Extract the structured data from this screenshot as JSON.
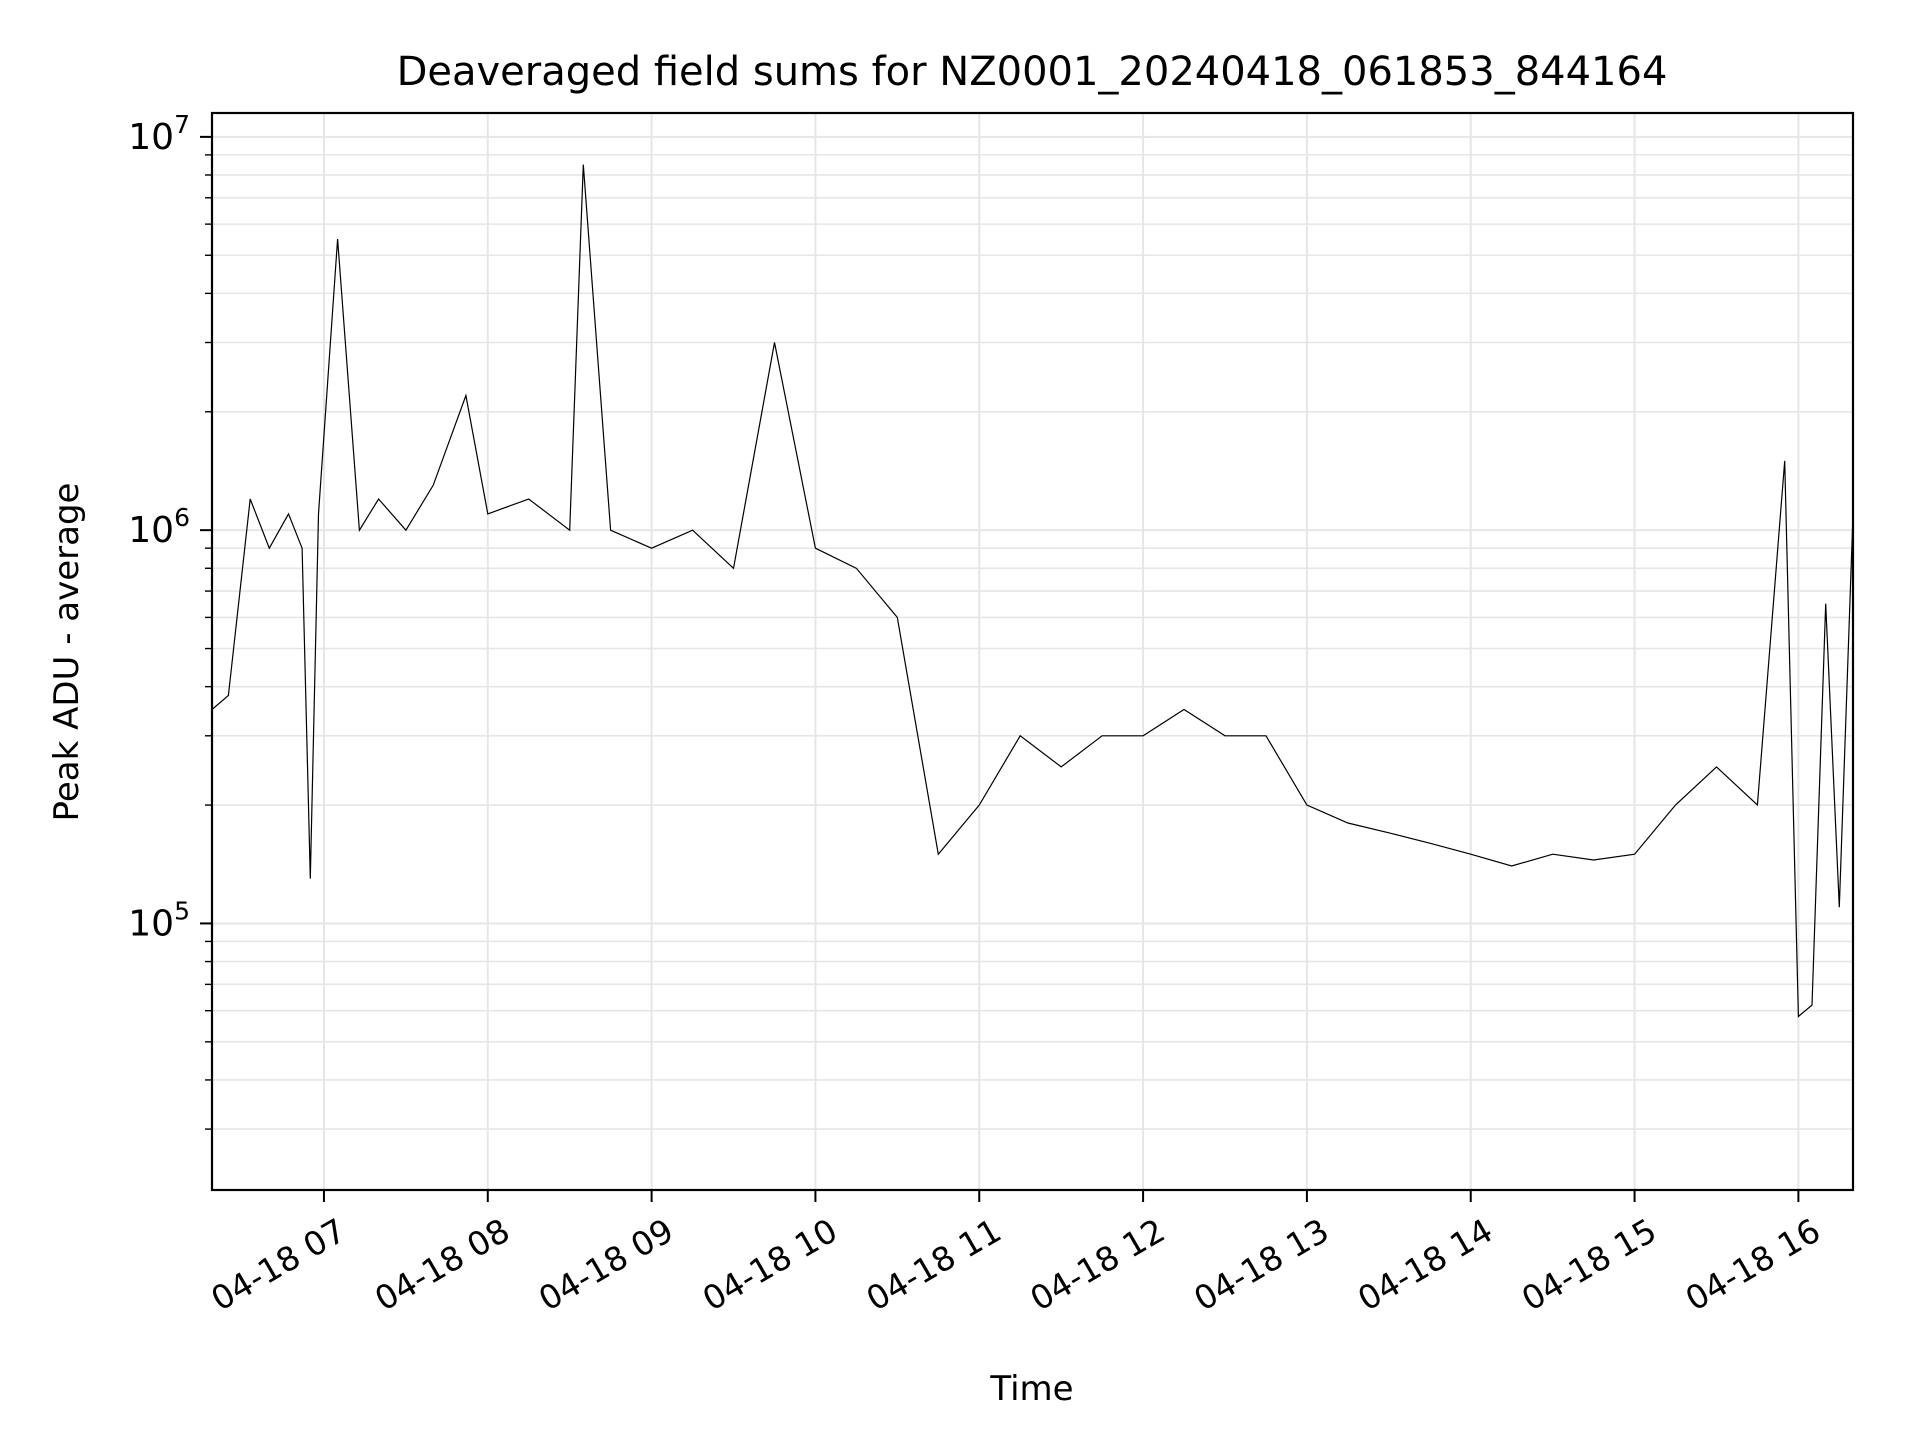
{
  "chart_data": {
    "type": "line",
    "title": "Deaveraged field sums for NZ0001_20240418_061853_844164",
    "xlabel": "Time",
    "ylabel": "Peak ADU - average",
    "y_scale": "log",
    "ylim": [
      21000,
      11500000
    ],
    "xlim": [
      "04-18 06:19",
      "04-18 16:20"
    ],
    "x_ticks": [
      "04-18 07",
      "04-18 08",
      "04-18 09",
      "04-18 10",
      "04-18 11",
      "04-18 12",
      "04-18 13",
      "04-18 14",
      "04-18 15",
      "04-18 16"
    ],
    "y_ticks": [
      {
        "base": "10",
        "exp": "5",
        "value": 100000
      },
      {
        "base": "10",
        "exp": "6",
        "value": 1000000
      },
      {
        "base": "10",
        "exp": "7",
        "value": 10000000
      }
    ],
    "grid": true,
    "line_color": "#000000",
    "grid_color": "#e6e6e6",
    "series": [
      {
        "x": [
          "04-18 06:19",
          "04-18 06:25",
          "04-18 06:33",
          "04-18 06:40",
          "04-18 06:47",
          "04-18 06:52",
          "04-18 06:55",
          "04-18 06:58",
          "04-18 07:05",
          "04-18 07:13",
          "04-18 07:20",
          "04-18 07:30",
          "04-18 07:40",
          "04-18 07:52",
          "04-18 08:00",
          "04-18 08:15",
          "04-18 08:30",
          "04-18 08:35",
          "04-18 08:45",
          "04-18 09:00",
          "04-18 09:15",
          "04-18 09:30",
          "04-18 09:45",
          "04-18 10:00",
          "04-18 10:15",
          "04-18 10:30",
          "04-18 10:45",
          "04-18 11:00",
          "04-18 11:15",
          "04-18 11:30",
          "04-18 11:45",
          "04-18 12:00",
          "04-18 12:15",
          "04-18 12:30",
          "04-18 12:45",
          "04-18 13:00",
          "04-18 13:15",
          "04-18 13:30",
          "04-18 13:45",
          "04-18 14:00",
          "04-18 14:15",
          "04-18 14:30",
          "04-18 14:45",
          "04-18 15:00",
          "04-18 15:15",
          "04-18 15:30",
          "04-18 15:45",
          "04-18 15:55",
          "04-18 16:00",
          "04-18 16:05",
          "04-18 16:10",
          "04-18 16:15",
          "04-18 16:20"
        ],
        "y": [
          350000,
          380000,
          1200000,
          900000,
          1100000,
          900000,
          130000,
          1100000,
          5500000,
          1000000,
          1200000,
          1000000,
          1300000,
          2200000,
          1100000,
          1200000,
          1000000,
          8500000,
          1000000,
          900000,
          1000000,
          800000,
          3000000,
          900000,
          800000,
          600000,
          150000,
          200000,
          300000,
          250000,
          300000,
          300000,
          350000,
          300000,
          300000,
          200000,
          180000,
          170000,
          160000,
          150000,
          140000,
          150000,
          145000,
          150000,
          200000,
          250000,
          200000,
          1500000,
          58000,
          62000,
          650000,
          110000,
          1100000
        ]
      }
    ]
  }
}
